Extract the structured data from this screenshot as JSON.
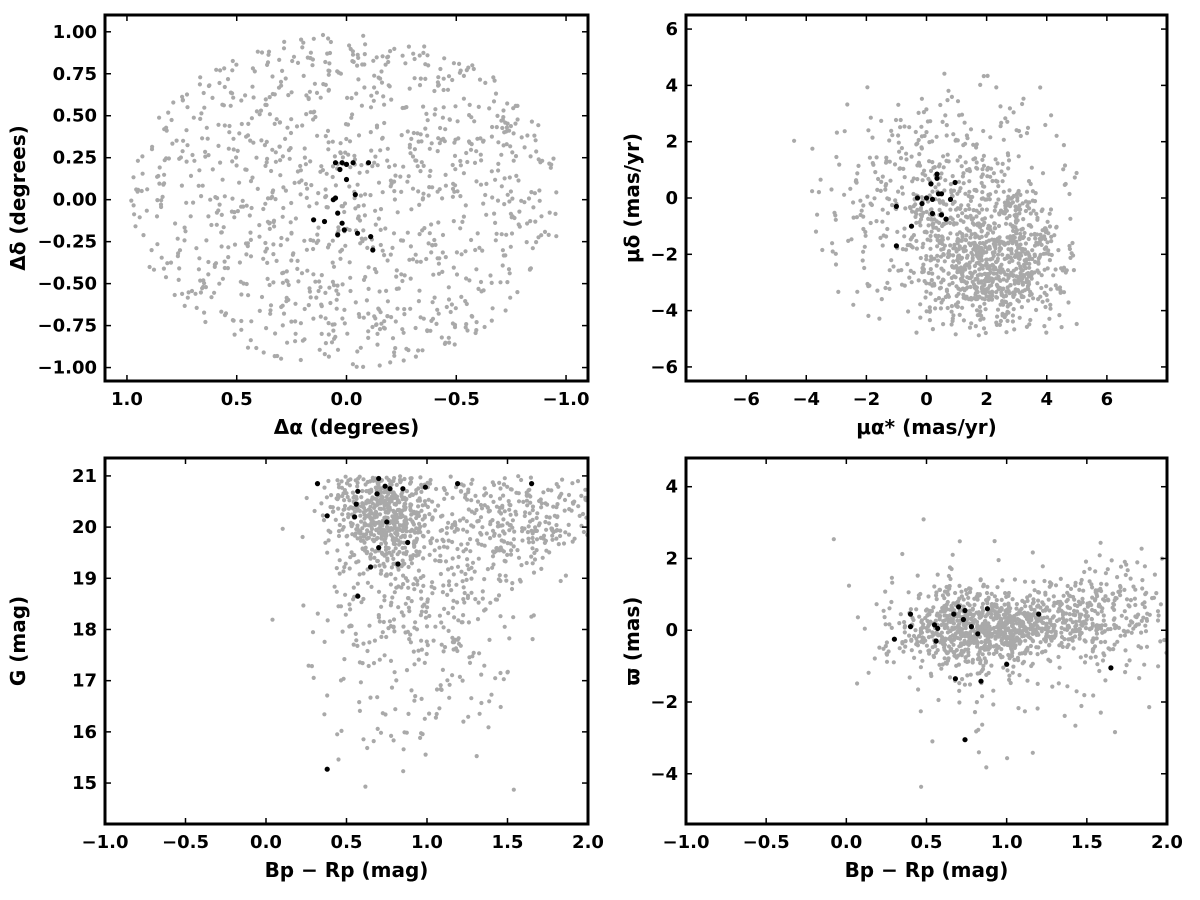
{
  "colors": {
    "field": "#a9a9a9",
    "member": "#000000",
    "frame": "#000000"
  },
  "chart_data": [
    {
      "type": "scatter",
      "id": "position",
      "xlabel": "Δα (degrees)",
      "ylabel": "Δδ (degrees)",
      "xlim": [
        1.1,
        -1.1
      ],
      "ylim": [
        -1.08,
        1.1
      ],
      "xticks": [
        1.0,
        0.5,
        0.0,
        -0.5,
        -1.0
      ],
      "xtick_labels": [
        "1.0",
        "0.5",
        "0.0",
        "−0.5",
        "−1.0"
      ],
      "yticks": [
        -1.0,
        -0.75,
        -0.5,
        -0.25,
        0.0,
        0.25,
        0.5,
        0.75,
        1.0
      ],
      "ytick_labels": [
        "−1.00",
        "−0.75",
        "−0.50",
        "−0.25",
        "0.00",
        "0.25",
        "0.50",
        "0.75",
        "1.00"
      ],
      "series": [
        {
          "role": "field",
          "color": "#a9a9a9",
          "distribution": {
            "kind": "ellipse",
            "cx": 0.0,
            "cy": 0.0,
            "rx": 0.98,
            "ry": 1.0,
            "count": 1100
          }
        },
        {
          "role": "members",
          "color": "#000000",
          "points": [
            [
              0.05,
              0.22
            ],
            [
              0.02,
              0.22
            ],
            [
              0.0,
              0.21
            ],
            [
              -0.03,
              0.22
            ],
            [
              -0.1,
              0.22
            ],
            [
              0.03,
              0.18
            ],
            [
              0.0,
              0.12
            ],
            [
              0.05,
              0.01
            ],
            [
              0.06,
              0.0
            ],
            [
              -0.04,
              0.03
            ],
            [
              0.04,
              -0.08
            ],
            [
              0.02,
              -0.14
            ],
            [
              0.15,
              -0.12
            ],
            [
              0.1,
              -0.13
            ],
            [
              -0.05,
              -0.2
            ],
            [
              0.04,
              -0.21
            ],
            [
              0.01,
              -0.18
            ],
            [
              -0.11,
              -0.22
            ],
            [
              -0.12,
              -0.3
            ]
          ]
        }
      ]
    },
    {
      "type": "scatter",
      "id": "proper-motion",
      "xlabel": "μα* (mas/yr)",
      "ylabel": "μδ (mas/yr)",
      "xlim": [
        -8,
        8
      ],
      "ylim": [
        -6.5,
        6.5
      ],
      "xticks": [
        -6,
        -4,
        -2,
        0,
        2,
        4,
        6
      ],
      "xtick_labels": [
        "−6",
        "−4",
        "−2",
        "0",
        "2",
        "4",
        "6"
      ],
      "yticks": [
        -6,
        -4,
        -2,
        0,
        2,
        4,
        6
      ],
      "ytick_labels": [
        "−6",
        "−4",
        "−2",
        "0",
        "2",
        "4",
        "6"
      ],
      "series": [
        {
          "role": "field",
          "color": "#a9a9a9",
          "distribution": {
            "kind": "clusters",
            "count": 1300,
            "clusters": [
              {
                "cx": 2.3,
                "cy": -2.4,
                "sx": 1.3,
                "sy": 1.2,
                "weight": 0.55
              },
              {
                "cx": 0.8,
                "cy": -0.8,
                "sx": 1.6,
                "sy": 1.9,
                "weight": 0.3
              },
              {
                "cx": 0.5,
                "cy": 1.0,
                "sx": 2.2,
                "sy": 1.8,
                "weight": 0.15
              }
            ],
            "clip": {
              "xmin": -4.5,
              "xmax": 5.0,
              "ymin": -4.9,
              "ymax": 4.6
            }
          }
        },
        {
          "role": "members",
          "color": "#000000",
          "points": [
            [
              0.35,
              0.85
            ],
            [
              0.35,
              0.7
            ],
            [
              0.95,
              0.55
            ],
            [
              0.15,
              0.5
            ],
            [
              0.5,
              0.15
            ],
            [
              0.4,
              0.15
            ],
            [
              0.0,
              0.0
            ],
            [
              0.2,
              -0.05
            ],
            [
              -0.3,
              0.0
            ],
            [
              0.8,
              -0.05
            ],
            [
              -0.15,
              -0.2
            ],
            [
              -1.0,
              -0.3
            ],
            [
              0.5,
              -0.6
            ],
            [
              0.2,
              -0.55
            ],
            [
              0.65,
              -0.75
            ],
            [
              -0.5,
              -1.0
            ],
            [
              -1.0,
              -1.7
            ]
          ]
        }
      ]
    },
    {
      "type": "scatter",
      "id": "cmd",
      "xlabel": "Bp − Rp (mag)",
      "ylabel": "G (mag)",
      "xlim": [
        -1.0,
        2.0
      ],
      "ylim": [
        14.2,
        21.35
      ],
      "xticks": [
        -1.0,
        -0.5,
        0.0,
        0.5,
        1.0,
        1.5,
        2.0
      ],
      "xtick_labels": [
        "−1.0",
        "−0.5",
        "0.0",
        "0.5",
        "1.0",
        "1.5",
        "2.0"
      ],
      "yticks": [
        15,
        16,
        17,
        18,
        19,
        20,
        21
      ],
      "ytick_labels": [
        "15",
        "16",
        "17",
        "18",
        "19",
        "20",
        "21"
      ],
      "series": [
        {
          "role": "field",
          "color": "#a9a9a9",
          "distribution": {
            "kind": "clusters",
            "count": 1200,
            "clusters": [
              {
                "cx": 0.72,
                "cy": 20.3,
                "sx": 0.16,
                "sy": 0.5,
                "weight": 0.4
              },
              {
                "cx": 0.95,
                "cy": 19.2,
                "sx": 0.3,
                "sy": 1.2,
                "weight": 0.25
              },
              {
                "cx": 1.6,
                "cy": 20.2,
                "sx": 0.25,
                "sy": 0.6,
                "weight": 0.25
              },
              {
                "cx": 0.9,
                "cy": 17.5,
                "sx": 0.35,
                "sy": 1.2,
                "weight": 0.1
              }
            ],
            "clip": {
              "xmin": -0.2,
              "xmax": 2.0,
              "ymin": 14.5,
              "ymax": 21.0
            }
          }
        },
        {
          "role": "members",
          "color": "#000000",
          "points": [
            [
              0.32,
              20.85
            ],
            [
              0.7,
              20.95
            ],
            [
              0.74,
              20.8
            ],
            [
              0.77,
              20.75
            ],
            [
              0.85,
              20.75
            ],
            [
              0.99,
              20.78
            ],
            [
              1.19,
              20.85
            ],
            [
              1.65,
              20.85
            ],
            [
              0.57,
              20.7
            ],
            [
              0.69,
              20.65
            ],
            [
              0.56,
              20.45
            ],
            [
              0.38,
              20.22
            ],
            [
              0.55,
              20.2
            ],
            [
              0.75,
              20.1
            ],
            [
              0.88,
              19.7
            ],
            [
              0.7,
              19.6
            ],
            [
              0.82,
              19.28
            ],
            [
              0.65,
              19.22
            ],
            [
              0.57,
              18.65
            ],
            [
              0.38,
              15.27
            ]
          ]
        }
      ]
    },
    {
      "type": "scatter",
      "id": "parallax",
      "xlabel": "Bp − Rp (mag)",
      "ylabel": "ϖ (mas)",
      "xlim": [
        -1.0,
        2.0
      ],
      "ylim": [
        -5.4,
        4.8
      ],
      "xticks": [
        -1.0,
        -0.5,
        0.0,
        0.5,
        1.0,
        1.5,
        2.0
      ],
      "xtick_labels": [
        "−1.0",
        "−0.5",
        "0.0",
        "0.5",
        "1.0",
        "1.5",
        "2.0"
      ],
      "yticks": [
        -4,
        -2,
        0,
        2,
        4
      ],
      "ytick_labels": [
        "−4",
        "−2",
        "0",
        "2",
        "4"
      ],
      "series": [
        {
          "role": "field",
          "color": "#a9a9a9",
          "distribution": {
            "kind": "clusters",
            "count": 1300,
            "clusters": [
              {
                "cx": 0.75,
                "cy": 0.0,
                "sx": 0.22,
                "sy": 0.6,
                "weight": 0.45
              },
              {
                "cx": 1.1,
                "cy": 0.1,
                "sx": 0.25,
                "sy": 0.4,
                "weight": 0.25
              },
              {
                "cx": 1.6,
                "cy": 0.4,
                "sx": 0.25,
                "sy": 0.8,
                "weight": 0.2
              },
              {
                "cx": 0.9,
                "cy": -0.3,
                "sx": 0.45,
                "sy": 1.6,
                "weight": 0.1
              }
            ],
            "clip": {
              "xmin": -0.1,
              "xmax": 2.0,
              "ymin": -5.0,
              "ymax": 4.4
            }
          }
        },
        {
          "role": "members",
          "color": "#000000",
          "points": [
            [
              0.4,
              0.45
            ],
            [
              0.55,
              0.15
            ],
            [
              0.57,
              0.05
            ],
            [
              0.67,
              0.45
            ],
            [
              0.7,
              0.65
            ],
            [
              0.74,
              0.55
            ],
            [
              0.88,
              0.6
            ],
            [
              1.2,
              0.45
            ],
            [
              0.73,
              0.3
            ],
            [
              0.78,
              0.1
            ],
            [
              0.82,
              -0.1
            ],
            [
              0.56,
              -0.3
            ],
            [
              0.3,
              -0.25
            ],
            [
              0.4,
              0.1
            ],
            [
              1.0,
              -0.95
            ],
            [
              1.65,
              -1.05
            ],
            [
              0.68,
              -1.35
            ],
            [
              0.84,
              -1.42
            ],
            [
              0.74,
              -3.05
            ]
          ]
        }
      ]
    }
  ]
}
